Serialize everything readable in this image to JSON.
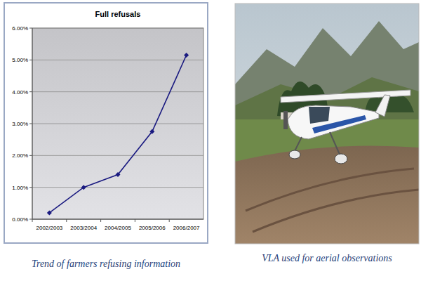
{
  "chart_data": {
    "type": "line",
    "title": "Full refusals",
    "categories": [
      "2002/2003",
      "2003/2004",
      "2004/2005",
      "2005/2006",
      "2006/2007"
    ],
    "values": [
      0.2,
      1.0,
      1.4,
      2.75,
      5.15
    ],
    "color": "#1a1a80",
    "marker": "diamond",
    "line_style": "solid",
    "ylim": [
      0,
      6
    ],
    "yticks": [
      {
        "value": 0,
        "label": "0.00%"
      },
      {
        "value": 1,
        "label": "1.00%"
      },
      {
        "value": 2,
        "label": "2.00%"
      },
      {
        "value": 3,
        "label": "3.00%"
      },
      {
        "value": 4,
        "label": "4.00%"
      },
      {
        "value": 5,
        "label": "5.00%"
      },
      {
        "value": 6,
        "label": "6.00%"
      }
    ],
    "grid": true
  },
  "captions": {
    "chart": "Trend of farmers refusing information",
    "photo": "VLA used for aerial observations"
  }
}
